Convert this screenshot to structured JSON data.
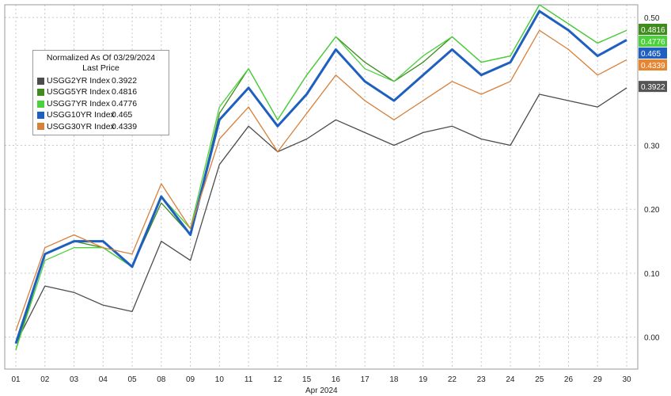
{
  "chart_data": {
    "type": "line",
    "legend": {
      "title": "Normalized As Of 03/29/2024",
      "subtitle": "Last Price",
      "placement": "top-left"
    },
    "xlabel": "Apr 2024",
    "x": [
      "01",
      "02",
      "03",
      "04",
      "05",
      "08",
      "09",
      "10",
      "11",
      "12",
      "15",
      "16",
      "17",
      "18",
      "19",
      "22",
      "23",
      "24",
      "25",
      "26",
      "29",
      "30"
    ],
    "ylim": [
      -0.05,
      0.52
    ],
    "yticks": [
      "0.00",
      "0.10",
      "0.20",
      "0.30",
      "0.50"
    ],
    "grid": true,
    "series": [
      {
        "name": "USGG2YR Index",
        "last_price": "0.3922",
        "color": "#4d4d4d",
        "label_bg": "#555555",
        "label_fg": "#ffffff",
        "values": [
          -0.01,
          0.08,
          0.07,
          0.05,
          0.04,
          0.15,
          0.12,
          0.27,
          0.33,
          0.29,
          0.31,
          0.34,
          0.32,
          0.3,
          0.32,
          0.33,
          0.31,
          0.3,
          0.38,
          0.37,
          0.36,
          0.39
        ]
      },
      {
        "name": "USGG5YR Index",
        "last_price": "0.4816",
        "color": "#3f8b1e",
        "label_bg": "#3f8b1e",
        "label_fg": "#ffffff",
        "values": [
          -0.02,
          0.13,
          0.15,
          0.14,
          0.11,
          0.21,
          0.16,
          0.35,
          0.42,
          0.34,
          0.41,
          0.47,
          0.43,
          0.4,
          0.43,
          0.47,
          0.43,
          0.44,
          0.52,
          0.49,
          0.46,
          0.48
        ]
      },
      {
        "name": "USGG7YR Index",
        "last_price": "0.4776",
        "color": "#49d23a",
        "label_bg": "#49d23a",
        "label_fg": "#ffffff",
        "values": [
          -0.02,
          0.12,
          0.14,
          0.14,
          0.11,
          0.22,
          0.17,
          0.36,
          0.42,
          0.34,
          0.41,
          0.47,
          0.42,
          0.4,
          0.44,
          0.47,
          0.43,
          0.44,
          0.52,
          0.49,
          0.46,
          0.48
        ]
      },
      {
        "name": "USGG10YR Index",
        "last_price": "0.465",
        "color": "#1f5fbf",
        "label_bg": "#1f5fbf",
        "label_fg": "#ffffff",
        "values": [
          -0.01,
          0.13,
          0.15,
          0.15,
          0.11,
          0.22,
          0.16,
          0.34,
          0.39,
          0.33,
          0.38,
          0.45,
          0.4,
          0.37,
          0.41,
          0.45,
          0.41,
          0.43,
          0.51,
          0.48,
          0.44,
          0.465
        ]
      },
      {
        "name": "USGG30YR Index",
        "last_price": "0.4339",
        "color": "#d7803a",
        "label_bg": "#e8852f",
        "label_fg": "#ffffff",
        "values": [
          0.01,
          0.14,
          0.16,
          0.14,
          0.13,
          0.24,
          0.17,
          0.31,
          0.36,
          0.29,
          0.35,
          0.41,
          0.37,
          0.34,
          0.37,
          0.4,
          0.38,
          0.4,
          0.48,
          0.45,
          0.41,
          0.434
        ]
      }
    ]
  }
}
